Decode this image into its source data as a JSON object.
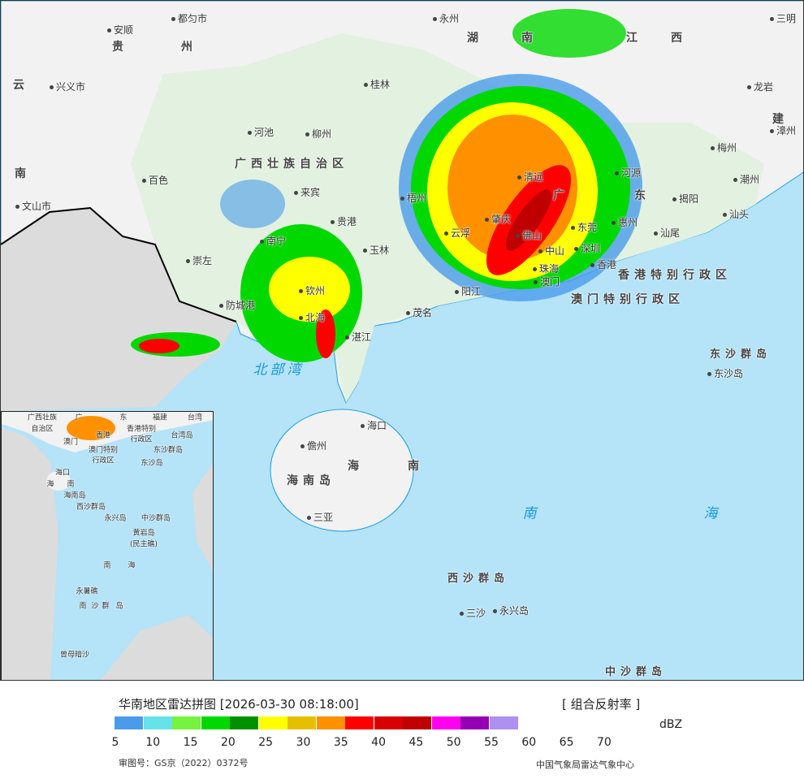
{
  "map": {
    "cities": [
      "永州",
      "都匀市",
      "三明",
      "安顺",
      "兴义市",
      "桂林",
      "龙岩",
      "漳州",
      "河池",
      "柳州",
      "梅州",
      "百色",
      "河源",
      "清远",
      "潮州",
      "来宾",
      "梧州",
      "揭阳",
      "文山市",
      "汕头",
      "贵港",
      "肇庆",
      "东莞",
      "惠州",
      "云浮",
      "佛山",
      "南宁",
      "汕尾",
      "玉林",
      "中山",
      "深圳",
      "崇左",
      "香港",
      "珠海",
      "钦州",
      "澳门",
      "阳江",
      "防城港",
      "北海",
      "茂名",
      "湛江",
      "海口",
      "儋州",
      "三亚",
      "东沙岛",
      "三沙",
      "永兴岛"
    ],
    "regions": [
      "贵",
      "州",
      "湖",
      "南",
      "江",
      "西",
      "云",
      "建",
      "南",
      "广西壮族自治区",
      "广",
      "东",
      "海",
      "南",
      "海南岛"
    ],
    "special_regions": [
      "香港特别行政区",
      "澳门特别行政区"
    ],
    "seas": [
      "北部湾",
      "南",
      "海"
    ],
    "islands": [
      "东沙群岛",
      "西沙群岛",
      "中沙群岛"
    ]
  },
  "inset": {
    "labels": [
      "广西壮族",
      "自治区",
      "广",
      "东",
      "福建",
      "台湾",
      "香港特别",
      "行政区",
      "台湾岛",
      "澳门",
      "香港",
      "澳门特别",
      "行政区",
      "东沙群岛",
      "东沙岛",
      "海口",
      "海",
      "南",
      "海南岛",
      "西沙群岛",
      "永兴岛",
      "中沙群岛",
      "黄岩岛",
      "(民主礁)",
      "南",
      "海",
      "永暑礁",
      "南",
      "沙",
      "群",
      "岛",
      "曾母暗沙"
    ]
  },
  "legend": {
    "title": "华南地区雷达拼图 [2026-03-30 08:18:00]",
    "product": "[ 组合反射率 ]",
    "unit": "dBZ",
    "colors": [
      "#4a9cea",
      "#66e2ea",
      "#75f33f",
      "#00d800",
      "#009100",
      "#ffff00",
      "#e6c000",
      "#ff9000",
      "#ff0000",
      "#d80000",
      "#c00000",
      "#ff00f0",
      "#9600b4",
      "#ad90f0"
    ],
    "ticks": [
      "5",
      "10",
      "15",
      "20",
      "25",
      "30",
      "35",
      "40",
      "45",
      "50",
      "55",
      "60",
      "65",
      "70"
    ],
    "approval": "审图号：GS京（2022）0372号",
    "source": "中国气象局雷达气象中心"
  }
}
